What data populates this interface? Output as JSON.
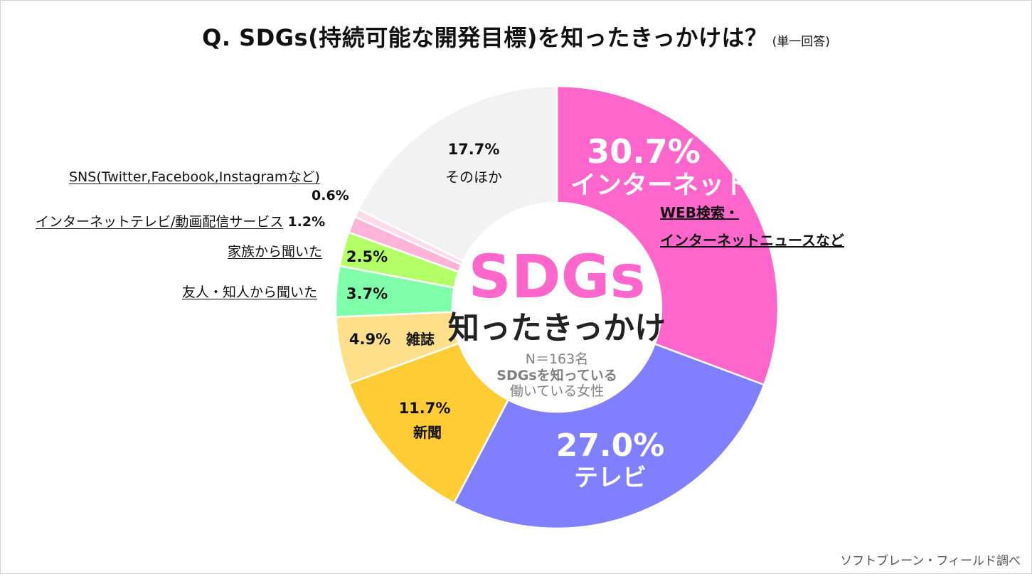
{
  "title": "Q.  SDGs(持続可能な開発目標)を知ったきっかけは？",
  "subtitle": "(単一回答)",
  "center": {
    "headline": "SDGs",
    "subhead": "知ったきっかけ",
    "n_label": "N＝163名",
    "population_line1": "SDGsを知っている",
    "population_line2": "働いている女性"
  },
  "source": "ソフトブレーン・フィールド調べ",
  "callouts": {
    "sns": {
      "label": "SNS(Twitter,Facebook,Instagramなど)",
      "pct": "0.6%"
    },
    "nettv": {
      "label": "インターネットテレビ/動画配信サービス",
      "pct": "1.2%"
    },
    "family": {
      "label": "家族から聞いた",
      "pct": "2.5%"
    },
    "friend": {
      "label": "友人・知人から聞いた",
      "pct": "3.7%"
    }
  },
  "chart_data": {
    "type": "pie",
    "donut": true,
    "unit": "%",
    "categories": [
      "インターネット",
      "テレビ",
      "新聞",
      "雑誌",
      "友人・知人から聞いた",
      "家族から聞いた",
      "インターネットテレビ/動画配信サービス",
      "SNS(Twitter,Facebook,Instagramなど)",
      "そのほか"
    ],
    "values": [
      30.7,
      27.0,
      11.7,
      4.9,
      3.7,
      2.5,
      1.2,
      0.6,
      17.7
    ],
    "value_labels": [
      "30.7%",
      "27.0%",
      "11.7%",
      "4.9%",
      "3.7%",
      "2.5%",
      "1.2%",
      "0.6%",
      "17.7%"
    ],
    "colors": [
      "#ff66cc",
      "#7f7fff",
      "#ffcc33",
      "#ffe08a",
      "#80ffaa",
      "#b3ff66",
      "#ffb3d9",
      "#ffd9ec",
      "#f2f2f2"
    ],
    "internet_sublabel_line1": "WEB検索・",
    "internet_sublabel_line2": "インターネットニュースなど"
  }
}
